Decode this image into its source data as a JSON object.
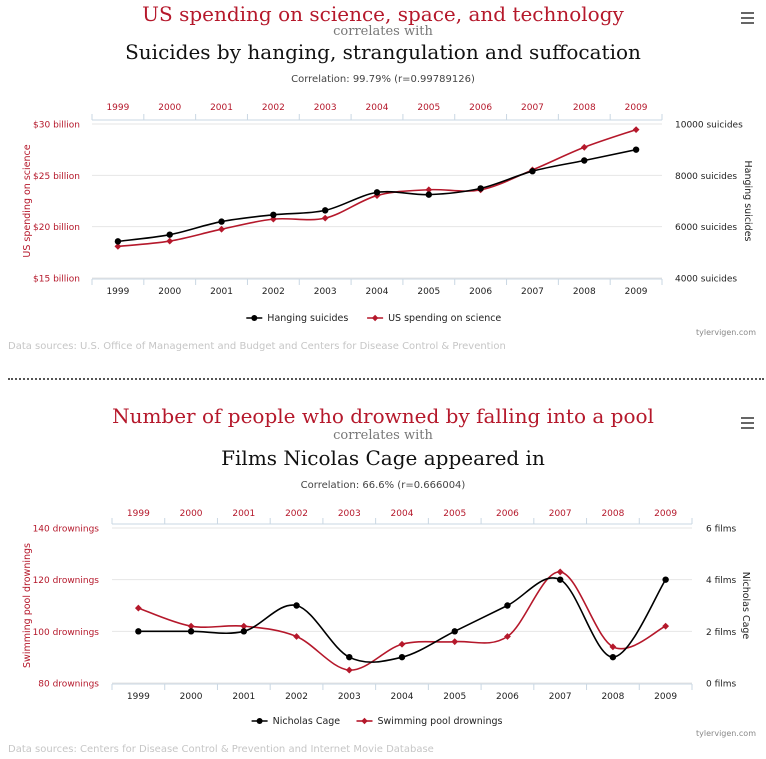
{
  "charts": [
    {
      "title_a": "US spending on science, space, and technology",
      "correlates": "correlates with",
      "title_b": "Suicides by hanging, strangulation and suffocation",
      "correlation": "Correlation: 99.79% (r=0.99789126)",
      "sources": "Data sources: U.S. Office of Management and Budget and Centers for Disease Control & Prevention",
      "credit": "tylervigen.com",
      "menu_icon": "hamburger-menu-icon"
    },
    {
      "title_a": "Number of people who drowned by falling into a pool",
      "correlates": "correlates with",
      "title_b": "Films Nicolas Cage appeared in",
      "correlation": "Correlation: 66.6% (r=0.666004)",
      "sources": "Data sources: Centers for Disease Control & Prevention and Internet Movie Database",
      "credit": "tylervigen.com",
      "menu_icon": "hamburger-menu-icon"
    }
  ],
  "colors": {
    "red": "#b5182b",
    "black": "#000000"
  },
  "chart_data": [
    {
      "type": "line",
      "x": [
        "1999",
        "2000",
        "2001",
        "2002",
        "2003",
        "2004",
        "2005",
        "2006",
        "2007",
        "2008",
        "2009"
      ],
      "left_axis": {
        "label": "US spending on science",
        "ticks": [
          "$15 billion",
          "$20 billion",
          "$25 billion",
          "$30 billion"
        ],
        "range": [
          15,
          30
        ]
      },
      "right_axis": {
        "label": "Hanging suicides",
        "ticks": [
          "4000 suicides",
          "6000 suicides",
          "8000 suicides",
          "10000 suicides"
        ],
        "range": [
          4000,
          10000
        ]
      },
      "series": [
        {
          "name": "Hanging suicides",
          "axis": "right",
          "color": "#000000",
          "marker": "circle",
          "values": [
            5427,
            5688,
            6198,
            6462,
            6635,
            7336,
            7248,
            7491,
            8161,
            8578,
            9000
          ]
        },
        {
          "name": "US spending on science",
          "axis": "left",
          "color": "#b5182b",
          "marker": "diamond",
          "values": [
            18.079,
            18.594,
            19.753,
            20.734,
            20.831,
            23.029,
            23.597,
            23.584,
            25.525,
            27.731,
            29.449
          ]
        }
      ],
      "legend": [
        "Hanging suicides",
        "US spending on science"
      ],
      "grid": true,
      "legend_position": "bottom-center"
    },
    {
      "type": "line",
      "x": [
        "1999",
        "2000",
        "2001",
        "2002",
        "2003",
        "2004",
        "2005",
        "2006",
        "2007",
        "2008",
        "2009"
      ],
      "left_axis": {
        "label": "Swimming pool drownings",
        "ticks": [
          "80 drownings",
          "100 drownings",
          "120 drownings",
          "140 drownings"
        ],
        "range": [
          80,
          140
        ]
      },
      "right_axis": {
        "label": "Nicholas Cage",
        "ticks": [
          "0 films",
          "2 films",
          "4 films",
          "6 films"
        ],
        "range": [
          0,
          6
        ]
      },
      "series": [
        {
          "name": "Nicholas Cage",
          "axis": "right",
          "color": "#000000",
          "marker": "circle",
          "values": [
            2,
            2,
            2,
            3,
            1,
            1,
            2,
            3,
            4,
            1,
            4
          ]
        },
        {
          "name": "Swimming pool drownings",
          "axis": "left",
          "color": "#b5182b",
          "marker": "diamond",
          "values": [
            109,
            102,
            102,
            98,
            85,
            95,
            96,
            98,
            123,
            94,
            102
          ]
        }
      ],
      "legend": [
        "Nicholas Cage",
        "Swimming pool drownings"
      ],
      "grid": true,
      "legend_position": "bottom-center"
    }
  ]
}
